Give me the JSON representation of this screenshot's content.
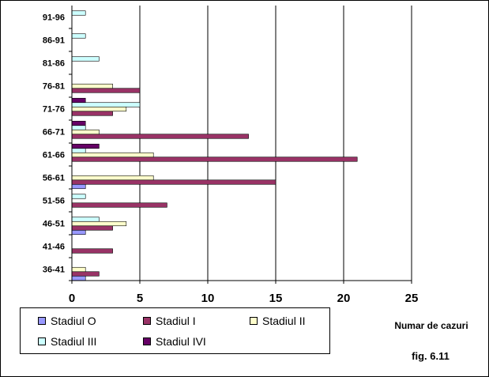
{
  "chart_data": {
    "type": "bar",
    "orientation": "horizontal",
    "categories": [
      "36-41",
      "41-46",
      "46-51",
      "51-56",
      "56-61",
      "61-66",
      "66-71",
      "71-76",
      "76-81",
      "81-86",
      "86-91",
      "91-96"
    ],
    "series": [
      {
        "name": "Stadiul O",
        "color": "#9999ff",
        "values": [
          1,
          0,
          1,
          0,
          1,
          0,
          0,
          0,
          0,
          0,
          0,
          0
        ]
      },
      {
        "name": "Stadiul I",
        "color": "#993366",
        "values": [
          2,
          3,
          3,
          7,
          15,
          21,
          13,
          3,
          5,
          0,
          0,
          0
        ]
      },
      {
        "name": "Stadiul II",
        "color": "#ffffcc",
        "values": [
          1,
          0,
          4,
          0,
          6,
          6,
          2,
          4,
          3,
          0,
          0,
          0
        ]
      },
      {
        "name": "Stadiul III",
        "color": "#ccffff",
        "values": [
          0,
          0,
          2,
          1,
          0,
          1,
          1,
          5,
          0,
          2,
          1,
          1
        ]
      },
      {
        "name": "Stadiul IVI",
        "color": "#660066",
        "values": [
          0,
          0,
          0,
          0,
          0,
          2,
          1,
          1,
          0,
          0,
          0,
          0
        ]
      }
    ],
    "xlim": [
      0,
      25
    ],
    "xticks": [
      "0",
      "5",
      "10",
      "15",
      "20",
      "25"
    ],
    "xlabel": "Numar de cazuri",
    "ylabel": "",
    "grid": "vertical",
    "legend_position": "bottom-left",
    "note": "fig. 6.11"
  }
}
